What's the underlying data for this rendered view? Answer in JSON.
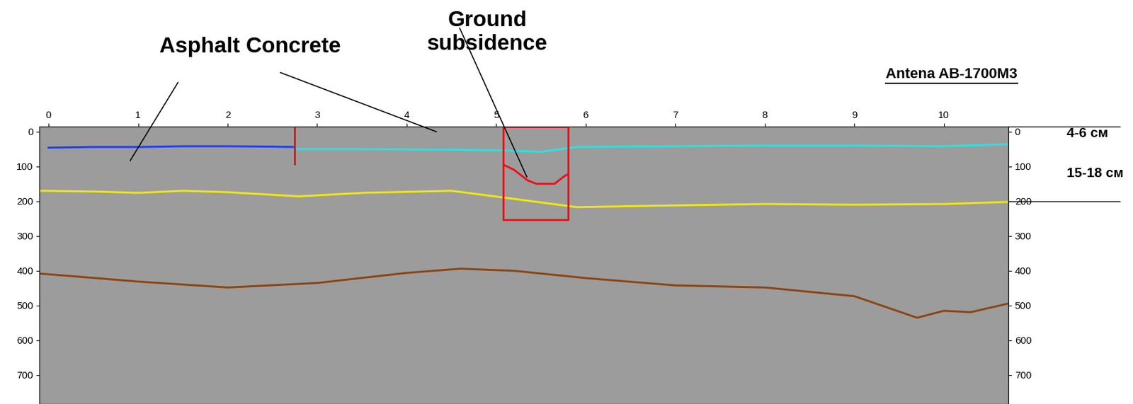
{
  "chart_data": {
    "type": "line",
    "xlim": [
      -0.1,
      10.72
    ],
    "ylim": [
      783,
      -15
    ],
    "xticks": [
      0,
      1,
      2,
      3,
      4,
      5,
      6,
      7,
      8,
      9,
      10
    ],
    "yticks": [
      0,
      100,
      200,
      300,
      400,
      500,
      600,
      700
    ],
    "y2lim": [
      783,
      -15
    ],
    "y2ticks": [
      0,
      100,
      200,
      300,
      400,
      500,
      600,
      700
    ],
    "grid": false,
    "series": [
      {
        "color": "#1f3ff0",
        "x": [
          0,
          0.5,
          1,
          1.5,
          2,
          2.5,
          2.75
        ],
        "values": [
          46,
          44,
          44,
          42,
          42,
          43,
          44
        ]
      },
      {
        "color": "#2de0e0",
        "x": [
          2.75,
          3.5,
          4.5,
          5.1,
          5.5,
          5.9,
          7,
          8,
          9,
          10,
          10.72
        ],
        "values": [
          50,
          50,
          52,
          54,
          58,
          44,
          42,
          40,
          40,
          42,
          36
        ]
      },
      {
        "color": "#f0e614",
        "x": [
          -0.1,
          0.5,
          1,
          1.5,
          2,
          2.8,
          3.5,
          4.5,
          5.1,
          5.9,
          7,
          8,
          9,
          10,
          10.72
        ],
        "values": [
          170,
          172,
          176,
          170,
          174,
          186,
          176,
          170,
          190,
          217,
          212,
          208,
          210,
          208,
          202
        ]
      },
      {
        "color": "#8b4513",
        "x": [
          -0.1,
          0,
          1,
          2,
          3,
          4,
          4.6,
          5.2,
          6,
          7,
          8,
          9,
          9.7,
          10,
          10.3,
          10.72
        ],
        "values": [
          408,
          410,
          431,
          448,
          435,
          406,
          394,
          400,
          421,
          442,
          448,
          473,
          535,
          515,
          519,
          494
        ]
      },
      {
        "color": "#e8141a",
        "x": [
          5.08,
          5.2,
          5.35,
          5.45,
          5.65,
          5.75,
          5.8
        ],
        "values": [
          95,
          110,
          140,
          150,
          150,
          130,
          122
        ]
      },
      {
        "color": "#e8141a",
        "x": [
          2.75,
          2.75
        ],
        "values": [
          -15,
          92
        ]
      },
      {
        "color": "#e8141a",
        "x": [
          5.08,
          5.08,
          5.8,
          5.8,
          5.08
        ],
        "values": [
          -15,
          254,
          254,
          -15,
          -15
        ]
      }
    ],
    "annotations": [
      {
        "text": "Asphalt Concrete",
        "targets": [
          [
            0.9,
            88
          ],
          [
            4.35,
            2
          ]
        ]
      },
      {
        "text": "Ground\nsubsidence",
        "targets": [
          [
            5.35,
            135
          ]
        ]
      },
      {
        "text": "Antena AB-1700M3",
        "targets": []
      }
    ],
    "depth_labels": [
      {
        "text": "4-6 см",
        "y": 5
      },
      {
        "text": "15-18 см",
        "y": 120
      }
    ],
    "depth_lines": [
      -15,
      200
    ]
  }
}
